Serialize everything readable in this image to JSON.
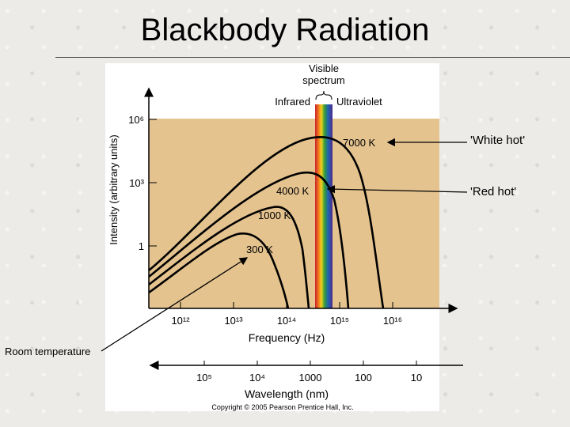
{
  "slide": {
    "title": "Blackbody Radiation"
  },
  "chart_data": {
    "type": "line",
    "title": "",
    "xlabel": "Frequency (Hz)",
    "ylabel": "Intensity (arbitrary units)",
    "x_scale": "log",
    "y_scale": "log",
    "x_ticks": [
      "10¹²",
      "10¹³",
      "10¹⁴",
      "10¹⁵",
      "10¹⁶"
    ],
    "y_ticks": [
      "10⁶",
      "10³",
      "1"
    ],
    "wavelength_axis": {
      "label": "Wavelength (nm)",
      "ticks": [
        "10⁵",
        "10⁴",
        "1000",
        "100",
        "10"
      ]
    },
    "region_labels": {
      "visible": "Visible spectrum",
      "infrared": "Infrared",
      "ultraviolet": "Ultraviolet"
    },
    "series": [
      {
        "name": "7000 K",
        "peak_frequency_hz": 410000000000000.0
      },
      {
        "name": "4000 K",
        "peak_frequency_hz": 235000000000000.0
      },
      {
        "name": "1000 K",
        "peak_frequency_hz": 100000000000000.0
      },
      {
        "name": "300 K",
        "peak_frequency_hz": 30000000000000.0
      }
    ],
    "annotations": [
      {
        "text": "'White hot'",
        "target": "7000 K"
      },
      {
        "text": "'Red hot'",
        "target": "4000 K"
      },
      {
        "text": "Room temperature",
        "target": "300 K"
      }
    ],
    "credit": "Copyright © 2005 Pearson Prentice Hall, Inc.",
    "colors": {
      "plot_background": "#e4c38f",
      "curve": "#000000"
    }
  }
}
